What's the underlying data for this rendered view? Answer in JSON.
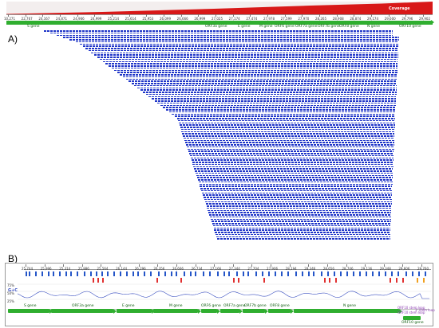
{
  "panel_a": {
    "label": "A)",
    "coverage_title": "Coverage",
    "ruler_ticks": [
      "10,271",
      "22,767",
      "24,167",
      "24,871",
      "24,966",
      "24,999",
      "25,214",
      "25,614",
      "25,953",
      "26,099",
      "26,666",
      "26,999",
      "27,025",
      "27,174",
      "27,474",
      "27,978",
      "27,599",
      "27,970",
      "28,265",
      "28,908",
      "28,874",
      "29,174",
      "29,600",
      "29,796",
      "29,902"
    ],
    "genes": [
      {
        "label": "S gene"
      },
      {
        "label": "ORF3a gene"
      },
      {
        "label": "E gene"
      },
      {
        "label": "M gene"
      },
      {
        "label": "ORF6 gene"
      },
      {
        "label": "ORF7a gene"
      },
      {
        "label": "ORF7b gene"
      },
      {
        "label": "ORF8 gene"
      },
      {
        "label": "N gene"
      },
      {
        "label": "ORF10 gene"
      }
    ]
  },
  "panel_b": {
    "label": "B)",
    "ruler_ticks": [
      "25,744",
      "25,996",
      "25,314",
      "25,886",
      "25,564",
      "26,144",
      "26,296",
      "26,356",
      "26,666",
      "26,734",
      "27,166",
      "27,344",
      "27,704",
      "27,906",
      "28,194",
      "28,346",
      "28,656",
      "28,746",
      "29,136",
      "29,348",
      "29,606",
      "29,760"
    ],
    "gc_title": "G+C",
    "gc_axis": [
      "75%",
      "50%",
      "25%"
    ],
    "genes": [
      {
        "label": "S gene"
      },
      {
        "label": "ORF3a gene"
      },
      {
        "label": "E gene"
      },
      {
        "label": "M gene"
      },
      {
        "label": "ORF6 gene"
      },
      {
        "label": "ORF7a gene"
      },
      {
        "label": "ORF7b gene"
      },
      {
        "label": "ORF8 gene"
      },
      {
        "label": "N gene"
      },
      {
        "label": "ORF10 gene"
      }
    ],
    "legend": [
      "ORF10 stem loop",
      "ORF10 stem loop",
      "3' stem loop"
    ]
  },
  "colors": {
    "reads": "#1f35c8",
    "gene": "#2fae2f",
    "coverage": "#d81818",
    "gc_line": "#3a4fc0"
  }
}
